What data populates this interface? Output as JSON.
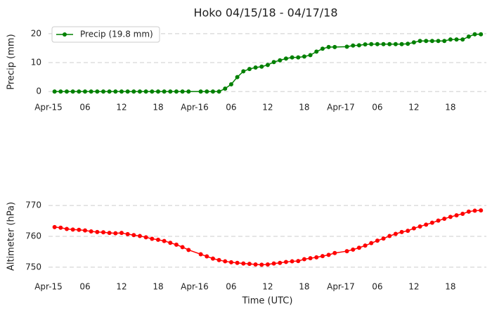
{
  "chart_data": [
    {
      "type": "line",
      "title": "Hoko 04/15/18 - 04/17/18",
      "ylabel": "Precip (mm)",
      "x": [
        1,
        2,
        3,
        4,
        5,
        6,
        7,
        8,
        9,
        10,
        11,
        12,
        13,
        14,
        15,
        16,
        17,
        18,
        19,
        20,
        21,
        22,
        23,
        25,
        26,
        27,
        28,
        29,
        30,
        31,
        32,
        33,
        34,
        35,
        36,
        37,
        38,
        39,
        40,
        41,
        42,
        43,
        44,
        45,
        46,
        47,
        49,
        50,
        51,
        52,
        53,
        54,
        55,
        56,
        57,
        58,
        59,
        60,
        61,
        62,
        63,
        64,
        65,
        66,
        67,
        68,
        69,
        70,
        71
      ],
      "series": [
        {
          "name": "Precip (19.8 mm)",
          "color": "#008000",
          "values": [
            0,
            0,
            0,
            0,
            0,
            0,
            0,
            0,
            0,
            0,
            0,
            0,
            0,
            0,
            0,
            0,
            0,
            0,
            0,
            0,
            0,
            0,
            0,
            0,
            0,
            0,
            0,
            1,
            2.5,
            5,
            7,
            7.8,
            8.3,
            8.6,
            9.2,
            10.2,
            10.8,
            11.4,
            11.8,
            11.8,
            12.1,
            12.6,
            13.8,
            14.8,
            15.4,
            15.4,
            15.5,
            15.9,
            16,
            16.3,
            16.4,
            16.4,
            16.4,
            16.4,
            16.4,
            16.4,
            16.5,
            17,
            17.5,
            17.5,
            17.5,
            17.5,
            17.5,
            18,
            18,
            18,
            19,
            19.8,
            19.8
          ]
        }
      ],
      "xlim": [
        0,
        71.9
      ],
      "xticks": [
        {
          "value": 0,
          "label": "Apr-15"
        },
        {
          "value": 6,
          "label": "06"
        },
        12,
        18,
        {
          "value": 24,
          "label": "Apr-16"
        },
        {
          "value": 30,
          "label": "06"
        },
        {
          "value": 36,
          "label": "12"
        },
        {
          "value": 42,
          "label": "18"
        },
        {
          "value": 48,
          "label": "Apr-17"
        },
        {
          "value": 54,
          "label": "06"
        },
        {
          "value": 60,
          "label": "12"
        },
        {
          "value": 66,
          "label": "18"
        }
      ],
      "ylim": [
        -2.4,
        22.9
      ],
      "yticks": [
        0,
        10,
        20
      ],
      "grid": true,
      "legend": "upper left"
    },
    {
      "type": "line",
      "ylabel": "Altimeter (hPa)",
      "xlabel": "Time (UTC)",
      "x": [
        1,
        2,
        3,
        4,
        5,
        6,
        7,
        8,
        9,
        10,
        11,
        12,
        13,
        14,
        15,
        16,
        17,
        18,
        19,
        20,
        21,
        22,
        23,
        25,
        26,
        27,
        28,
        29,
        30,
        31,
        32,
        33,
        34,
        35,
        36,
        37,
        38,
        39,
        40,
        41,
        42,
        43,
        44,
        45,
        46,
        47,
        49,
        50,
        51,
        52,
        53,
        54,
        55,
        56,
        57,
        58,
        59,
        60,
        61,
        62,
        63,
        64,
        65,
        66,
        67,
        68,
        69,
        70,
        71
      ],
      "series": [
        {
          "color": "#ff0000",
          "values": [
            763,
            762.8,
            762.4,
            762.2,
            762.1,
            761.9,
            761.6,
            761.4,
            761.3,
            761.1,
            761,
            761.1,
            760.7,
            760.4,
            760.1,
            759.7,
            759.2,
            758.9,
            758.5,
            757.9,
            757.3,
            756.5,
            755.6,
            754.2,
            753.5,
            752.8,
            752.3,
            751.9,
            751.6,
            751.4,
            751.2,
            751.1,
            750.9,
            750.8,
            750.9,
            751.2,
            751.4,
            751.7,
            751.9,
            752,
            752.6,
            752.9,
            753.2,
            753.6,
            754,
            754.6,
            755.2,
            755.7,
            756.3,
            757,
            757.8,
            758.6,
            759.3,
            760.1,
            760.8,
            761.4,
            761.8,
            762.6,
            763.2,
            763.8,
            764.4,
            765.1,
            765.7,
            766.3,
            766.8,
            767.3,
            768,
            768.3,
            768.4
          ]
        }
      ],
      "xlim": [
        0,
        71.9
      ],
      "xticks": [
        {
          "value": 0,
          "label": "Apr-15"
        },
        {
          "value": 6,
          "label": "06"
        },
        12,
        18,
        {
          "value": 24,
          "label": "Apr-16"
        },
        {
          "value": 30,
          "label": "06"
        },
        {
          "value": 36,
          "label": "12"
        },
        {
          "value": 42,
          "label": "18"
        },
        {
          "value": 48,
          "label": "Apr-17"
        },
        {
          "value": 54,
          "label": "06"
        },
        {
          "value": 60,
          "label": "12"
        },
        {
          "value": 66,
          "label": "18"
        }
      ],
      "ylim": [
        747.7,
        772.3
      ],
      "yticks": [
        750,
        760,
        770
      ],
      "grid": true
    }
  ]
}
